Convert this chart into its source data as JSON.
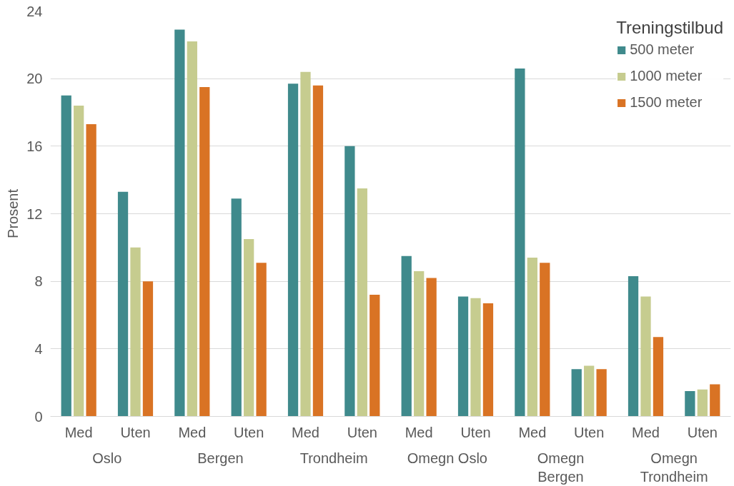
{
  "chart_data": {
    "type": "bar",
    "ylabel": "Prosent",
    "legend_title": "Treningstilbud",
    "categories": [
      "Med",
      "Uten",
      "Med",
      "Uten",
      "Med",
      "Uten",
      "Med",
      "Uten",
      "Med",
      "Uten",
      "Med",
      "Uten"
    ],
    "annotations": [
      "Oslo",
      "Bergen",
      "Trondheim",
      "Omegn Oslo",
      "Omegn Bergen",
      "Omegn Trondheim"
    ],
    "series": [
      {
        "name": "500 meter",
        "color": "#3f8a8c",
        "values": [
          19.0,
          13.3,
          22.9,
          12.9,
          19.7,
          16.0,
          9.5,
          7.1,
          20.6,
          2.8,
          8.3,
          1.5
        ]
      },
      {
        "name": "1000 meter",
        "color": "#c6cc8f",
        "values": [
          18.4,
          10.0,
          22.2,
          10.5,
          20.4,
          13.5,
          8.6,
          7.0,
          9.4,
          3.0,
          7.1,
          1.6
        ]
      },
      {
        "name": "1500 meter",
        "color": "#d97324",
        "values": [
          17.3,
          8.0,
          19.5,
          9.1,
          19.6,
          7.2,
          8.2,
          6.7,
          9.1,
          2.8,
          4.7,
          1.9
        ]
      }
    ],
    "ylim": [
      0,
      24
    ],
    "yticks": [
      0,
      4,
      8,
      12,
      16,
      20,
      24
    ],
    "grid": "y",
    "legend": "top right"
  }
}
